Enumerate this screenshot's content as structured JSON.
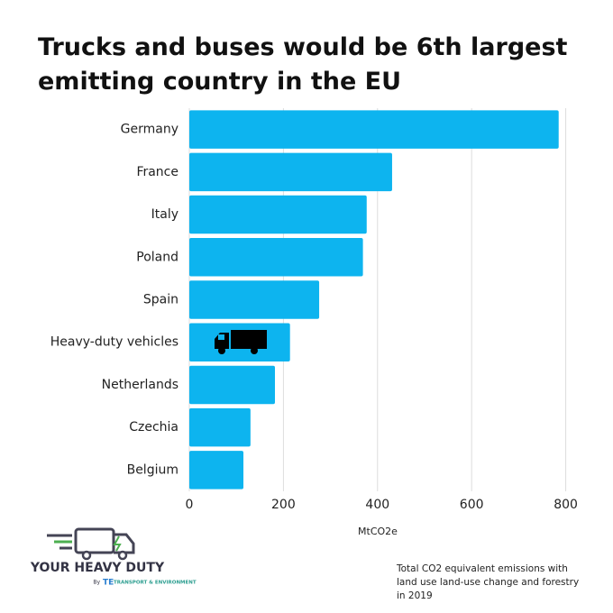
{
  "chart_data": {
    "type": "bar",
    "orientation": "horizontal",
    "title": "Trucks and buses would be 6th largest emitting country in the EU",
    "categories": [
      "Germany",
      "France",
      "Italy",
      "Poland",
      "Spain",
      "Heavy-duty vehicles",
      "Netherlands",
      "Czechia",
      "Belgium"
    ],
    "values": [
      785,
      431,
      377,
      369,
      276,
      214,
      182,
      130,
      115
    ],
    "color": "#0db4ef",
    "xlim": [
      0,
      820
    ],
    "xticks": [
      0,
      200,
      400,
      600,
      800
    ],
    "grid": true,
    "x_label": "MtCO2e",
    "note": "Total CO2 equivalent emissions with land use land-use change and forestry in 2019"
  },
  "logo": {
    "title": "YOUR HEAVY DUTY",
    "by": "By",
    "org": "TRANSPORT & ENVIRONMENT"
  }
}
